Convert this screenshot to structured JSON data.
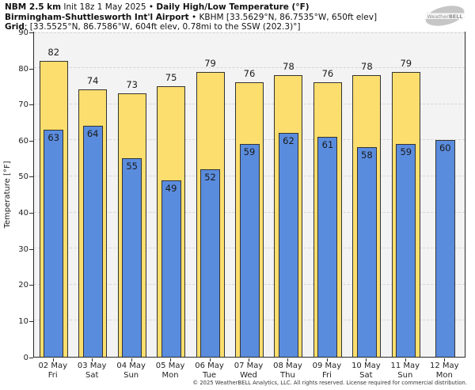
{
  "header": {
    "line1_bold1": "NBM 2.5 km",
    "line1_mid": " Init 18z 1 May 2025 • ",
    "line1_bold2": "Daily High/Low Temperature (°F)",
    "line2_bold": "Birmingham-Shuttlesworth Int'l Airport",
    "line2_rest": " • KBHM [33.5629°N, 86.7535°W, 650ft elev]",
    "line3_bold": "Grid",
    "line3_rest": ": [33.5525°N, 86.7586°W, 604ft elev, 0.78mi to the SSW (202.3)°]"
  },
  "logo": {
    "text_weather": "Weather",
    "text_bell": "BELL"
  },
  "chart_data": {
    "type": "bar",
    "title": "NBM 2.5 km Init 18z 1 May 2025 • Daily High/Low Temperature (°F)",
    "subtitle": "Birmingham-Shuttlesworth Int'l Airport • KBHM",
    "ylabel": "Temperature [°F]",
    "ylim": [
      0,
      90
    ],
    "ytick_step": 10,
    "yticks": [
      0,
      10,
      20,
      30,
      40,
      50,
      60,
      70,
      80,
      90
    ],
    "grid": "horizontal-dashed",
    "legend": "none",
    "categories": [
      {
        "date": "02 May",
        "day": "Fri"
      },
      {
        "date": "03 May",
        "day": "Sat"
      },
      {
        "date": "04 May",
        "day": "Sun"
      },
      {
        "date": "05 May",
        "day": "Mon"
      },
      {
        "date": "06 May",
        "day": "Tue"
      },
      {
        "date": "07 May",
        "day": "Wed"
      },
      {
        "date": "08 May",
        "day": "Thu"
      },
      {
        "date": "09 May",
        "day": "Fri"
      },
      {
        "date": "10 May",
        "day": "Sat"
      },
      {
        "date": "11 May",
        "day": "Sun"
      },
      {
        "date": "12 May",
        "day": "Mon"
      }
    ],
    "series": [
      {
        "name": "Daily High",
        "color": "#fbde6e",
        "values": [
          82,
          74,
          73,
          75,
          79,
          76,
          78,
          76,
          78,
          79,
          null
        ]
      },
      {
        "name": "Daily Low",
        "color": "#5a8cde",
        "values": [
          63,
          64,
          55,
          49,
          52,
          59,
          62,
          61,
          58,
          59,
          60
        ]
      }
    ],
    "bar_border_color": "#333333",
    "plot_background": "#f3f3f3"
  },
  "footer": {
    "copyright": "© 2025 WeatherBELL Analytics, LLC. All rights reserved. License required for commercial distribution."
  }
}
